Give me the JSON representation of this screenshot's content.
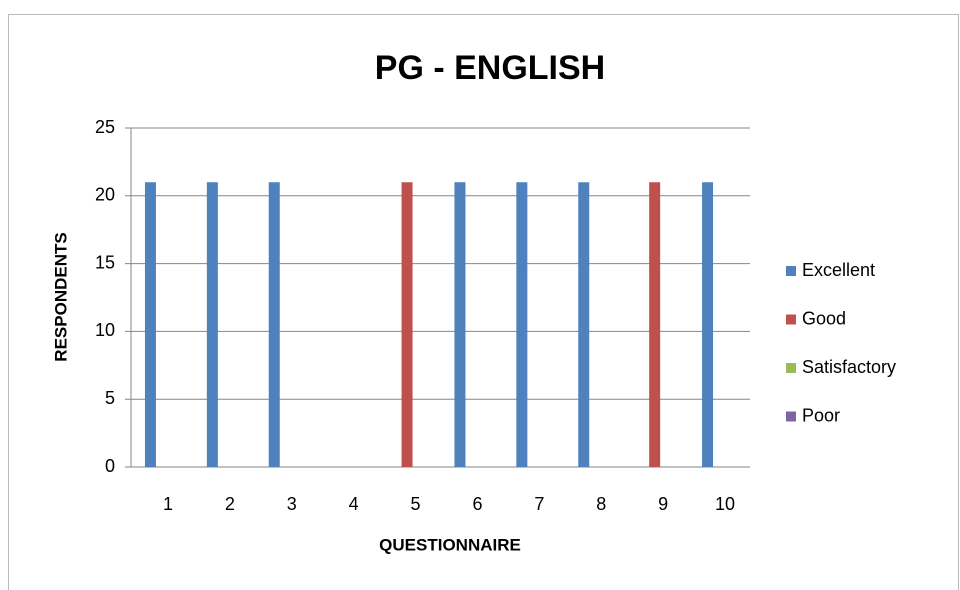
{
  "chart_data": {
    "type": "bar",
    "title": "PG - ENGLISH",
    "x_label": "QUESTIONNAIRE",
    "y_label": "RESPONDENTS",
    "categories": [
      "1",
      "2",
      "3",
      "4",
      "5",
      "6",
      "7",
      "8",
      "9",
      "10"
    ],
    "series": [
      {
        "name": "Excellent",
        "color": "#4f81bd",
        "values": [
          21,
          21,
          21,
          0,
          0,
          21,
          21,
          21,
          0,
          21
        ]
      },
      {
        "name": "Good",
        "color": "#c0504d",
        "values": [
          0,
          0,
          0,
          0,
          21,
          0,
          0,
          0,
          21,
          0
        ]
      },
      {
        "name": "Satisfactory",
        "color": "#9bbb59",
        "values": [
          0,
          0,
          0,
          0,
          0,
          0,
          0,
          0,
          0,
          0
        ]
      },
      {
        "name": "Poor",
        "color": "#8064a2",
        "values": [
          0,
          0,
          0,
          0,
          0,
          0,
          0,
          0,
          0,
          0
        ]
      }
    ],
    "ylim": [
      0,
      25
    ],
    "yticks": [
      0,
      5,
      10,
      15,
      20,
      25
    ],
    "grid": true,
    "legend": "right"
  }
}
